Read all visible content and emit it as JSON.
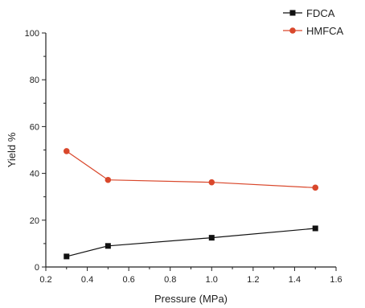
{
  "chart_data": {
    "type": "line",
    "xlabel": "Pressure (MPa)",
    "ylabel": "Yield %",
    "xlim": [
      0.2,
      1.6
    ],
    "ylim": [
      0,
      100
    ],
    "x_ticks": [
      "0.2",
      "0.4",
      "0.6",
      "0.8",
      "1.0",
      "1.2",
      "1.4",
      "1.6"
    ],
    "y_ticks": [
      "0",
      "20",
      "40",
      "60",
      "80",
      "100"
    ],
    "grid": false,
    "legend_position": "top-right",
    "series": [
      {
        "name": "FDCA",
        "color": "#111111",
        "marker": "square",
        "x": [
          0.3,
          0.5,
          1.0,
          1.5
        ],
        "y": [
          4.5,
          9,
          12.5,
          16.5
        ]
      },
      {
        "name": "HMFCA",
        "color": "#d9472b",
        "marker": "circle",
        "x": [
          0.3,
          0.5,
          1.0,
          1.5
        ],
        "y": [
          49.5,
          37.2,
          36.2,
          33.9
        ]
      }
    ]
  }
}
